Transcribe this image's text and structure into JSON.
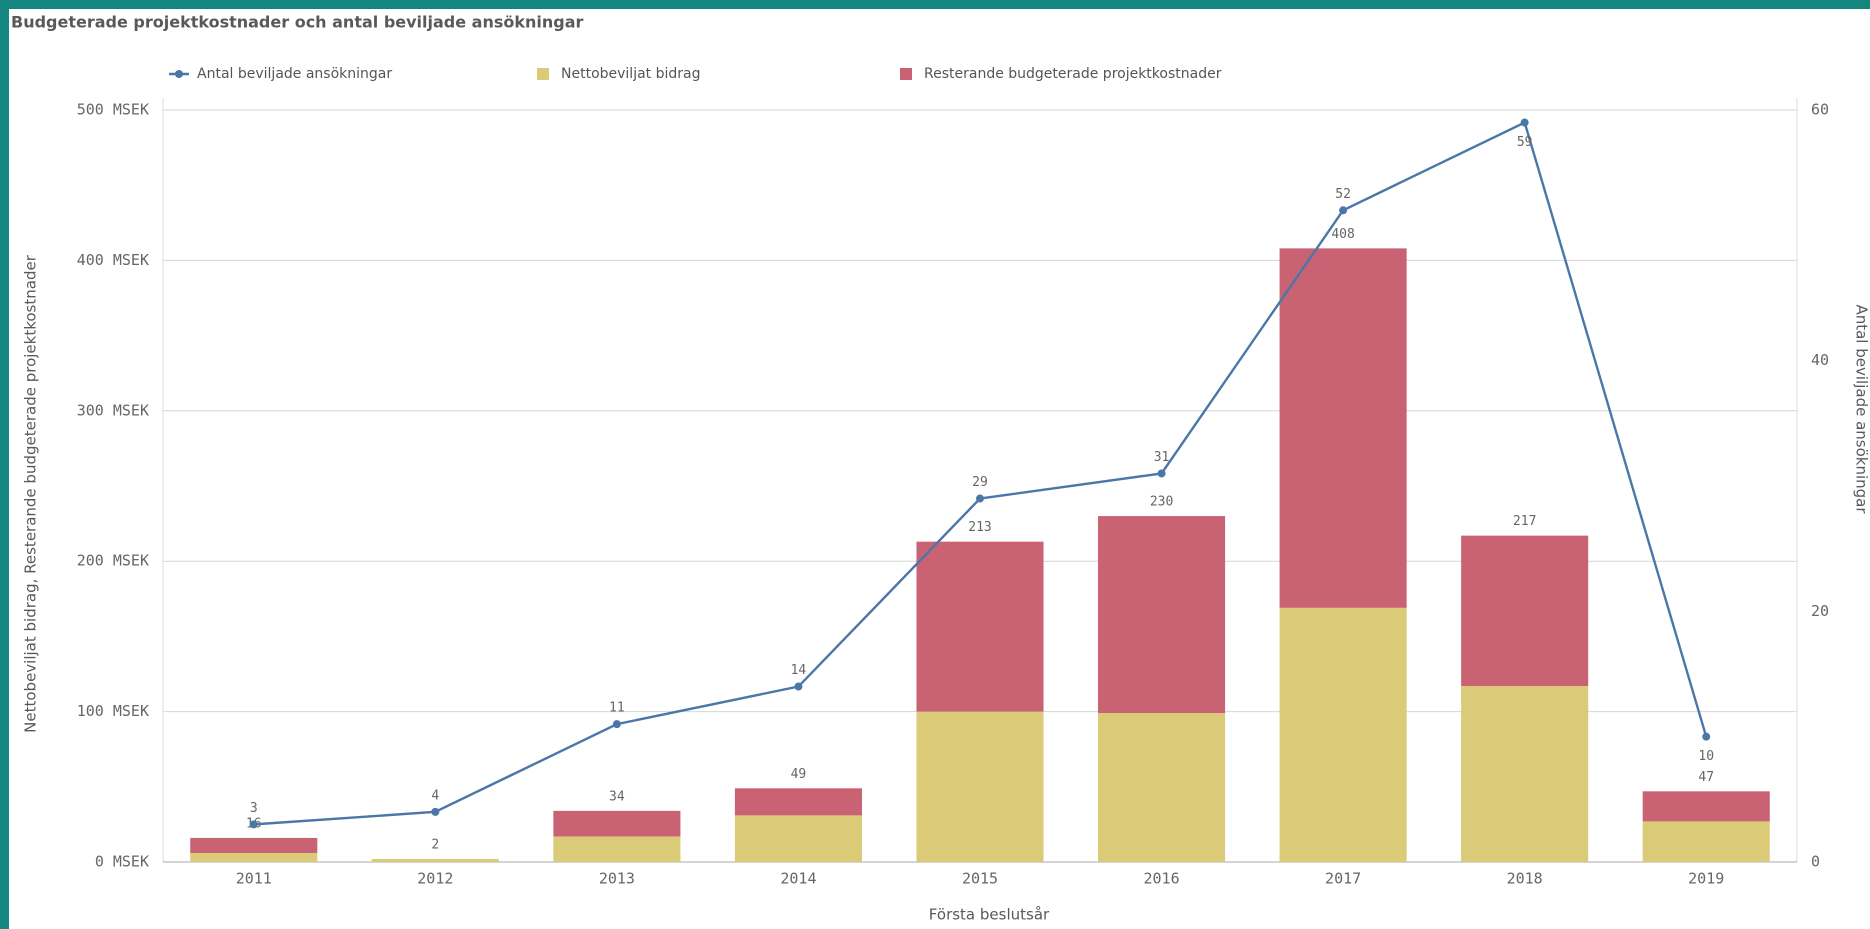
{
  "chart_data": {
    "type": "bar-line",
    "title": "Budgeterade projektkostnader och antal beviljade ansökningar",
    "x_label": "Första beslutsår",
    "y_label": "Nettobeviljat bidrag,  Resterande budgeterade projektkostnader",
    "y2_label": "Antal beviljade ansökningar",
    "categories": [
      "2011",
      "2012",
      "2013",
      "2014",
      "2015",
      "2016",
      "2017",
      "2018",
      "2019"
    ],
    "series": [
      {
        "name": "Antal beviljade ansökningar",
        "color": "#4a77a8",
        "type": "line",
        "axis": "y2",
        "values": [
          3,
          4,
          11,
          14,
          29,
          31,
          52,
          59,
          10
        ]
      },
      {
        "name": "Nettobeviljat bidrag",
        "color": "#dbcb78",
        "type": "bar",
        "values": [
          6,
          2,
          17,
          31,
          100,
          99,
          169,
          117,
          27
        ]
      },
      {
        "name": "Resterande budgeterade projektkostnader",
        "color": "#c96374",
        "type": "bar",
        "values": [
          10,
          0,
          17,
          18,
          113,
          131,
          239,
          100,
          20
        ]
      }
    ],
    "total_labels": [
      16,
      2,
      34,
      49,
      213,
      230,
      408,
      217,
      47
    ],
    "ylim": [
      0,
      500
    ],
    "yticks": [
      {
        "value": 0,
        "label": "0 MSEK"
      },
      {
        "value": 100,
        "label": "100 MSEK"
      },
      {
        "value": 200,
        "label": "200 MSEK"
      },
      {
        "value": 300,
        "label": "300 MSEK"
      },
      {
        "value": 400,
        "label": "400 MSEK"
      },
      {
        "value": 500,
        "label": "500 MSEK"
      }
    ],
    "y2lim": [
      0,
      60
    ],
    "y2ticks": [
      0,
      20,
      40,
      60
    ],
    "grid": true
  }
}
